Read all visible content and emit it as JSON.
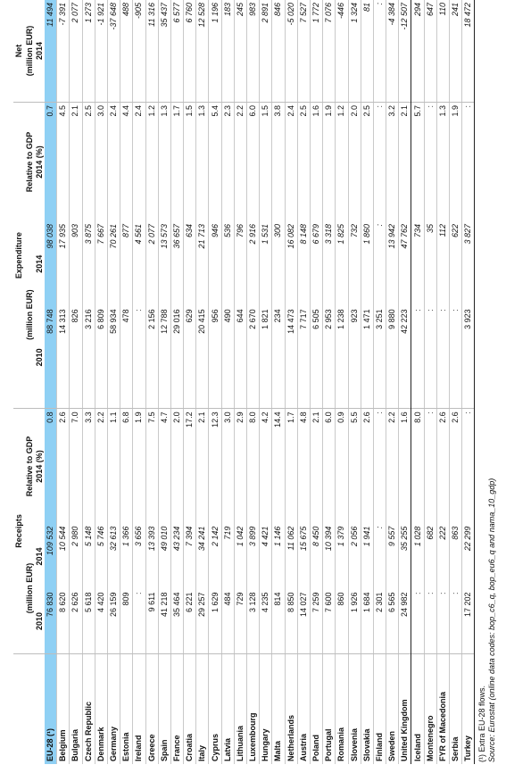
{
  "header": {
    "receipts": "Receipts",
    "expenditure": "Expenditure",
    "net": "Net",
    "unit": "(million EUR)",
    "relative_to_gdp": "Relative to GDP",
    "rel_year": "2014 (%)",
    "y2010": "2010",
    "y2014": "2014"
  },
  "rows": [
    {
      "country": "EU-28 (¹)",
      "r2010": "76 830",
      "r2014": "109 532",
      "rgdp": "0.8",
      "e2010": "88 748",
      "e2014": "98 038",
      "egdp": "0.7",
      "net": "11 494"
    },
    {
      "country": "Belgium",
      "r2010": "8 620",
      "r2014": "10 544",
      "rgdp": "2.6",
      "e2010": "14 313",
      "e2014": "17 935",
      "egdp": "4.5",
      "net": "-7 391"
    },
    {
      "country": "Bulgaria",
      "r2010": "2 626",
      "r2014": "2 980",
      "rgdp": "7.0",
      "e2010": "826",
      "e2014": "903",
      "egdp": "2.1",
      "net": "2 077"
    },
    {
      "country": "Czech Republic",
      "r2010": "5 618",
      "r2014": "5 148",
      "rgdp": "3.3",
      "e2010": "3 216",
      "e2014": "3 875",
      "egdp": "2.5",
      "net": "1 273"
    },
    {
      "country": "Denmark",
      "r2010": "4 420",
      "r2014": "5 746",
      "rgdp": "2.2",
      "e2010": "6 809",
      "e2014": "7 667",
      "egdp": "3.0",
      "net": "-1 921"
    },
    {
      "country": "Germany",
      "r2010": "26 159",
      "r2014": "32 613",
      "rgdp": "1.1",
      "e2010": "58 934",
      "e2014": "70 261",
      "egdp": "2.4",
      "net": "-37 648"
    },
    {
      "country": "Estonia",
      "r2010": "809",
      "r2014": "1 366",
      "rgdp": "6.8",
      "e2010": "478",
      "e2014": "877",
      "egdp": "4.4",
      "net": "488"
    },
    {
      "country": "Ireland",
      "r2010": ":",
      "r2014": "3 656",
      "rgdp": "1.9",
      "e2010": ":",
      "e2014": "4 561",
      "egdp": "2.4",
      "net": "-905"
    },
    {
      "country": "Greece",
      "r2010": "9 611",
      "r2014": "13 393",
      "rgdp": "7.5",
      "e2010": "2 156",
      "e2014": "2 077",
      "egdp": "1.2",
      "net": "11 316"
    },
    {
      "country": "Spain",
      "r2010": "41 218",
      "r2014": "49 010",
      "rgdp": "4.7",
      "e2010": "12 788",
      "e2014": "13 573",
      "egdp": "1.3",
      "net": "35 437"
    },
    {
      "country": "France",
      "r2010": "35 464",
      "r2014": "43 234",
      "rgdp": "2.0",
      "e2010": "29 016",
      "e2014": "36 657",
      "egdp": "1.7",
      "net": "6 577"
    },
    {
      "country": "Croatia",
      "r2010": "6 221",
      "r2014": "7 394",
      "rgdp": "17.2",
      "e2010": "629",
      "e2014": "634",
      "egdp": "1.5",
      "net": "6 760"
    },
    {
      "country": "Italy",
      "r2010": "29 257",
      "r2014": "34 241",
      "rgdp": "2.1",
      "e2010": "20 415",
      "e2014": "21 713",
      "egdp": "1.3",
      "net": "12 528"
    },
    {
      "country": "Cyprus",
      "r2010": "1 629",
      "r2014": "2 142",
      "rgdp": "12.3",
      "e2010": "956",
      "e2014": "946",
      "egdp": "5.4",
      "net": "1 196"
    },
    {
      "country": "Latvia",
      "r2010": "484",
      "r2014": "719",
      "rgdp": "3.0",
      "e2010": "490",
      "e2014": "536",
      "egdp": "2.3",
      "net": "183"
    },
    {
      "country": "Lithuania",
      "r2010": "729",
      "r2014": "1 042",
      "rgdp": "2.9",
      "e2010": "644",
      "e2014": "796",
      "egdp": "2.2",
      "net": "245"
    },
    {
      "country": "Luxembourg",
      "r2010": "3 128",
      "r2014": "3 899",
      "rgdp": "8.0",
      "e2010": "2 670",
      "e2014": "2 916",
      "egdp": "6.0",
      "net": "983"
    },
    {
      "country": "Hungary",
      "r2010": "4 235",
      "r2014": "4 421",
      "rgdp": "4.2",
      "e2010": "1 821",
      "e2014": "1 531",
      "egdp": "1.5",
      "net": "2 891"
    },
    {
      "country": "Malta",
      "r2010": "814",
      "r2014": "1 146",
      "rgdp": "14.4",
      "e2010": "234",
      "e2014": "300",
      "egdp": "3.8",
      "net": "846"
    },
    {
      "country": "Netherlands",
      "r2010": "8 850",
      "r2014": "11 062",
      "rgdp": "1.7",
      "e2010": "14 473",
      "e2014": "16 082",
      "egdp": "2.4",
      "net": "-5 020"
    },
    {
      "country": "Austria",
      "r2010": "14 027",
      "r2014": "15 675",
      "rgdp": "4.8",
      "e2010": "7 717",
      "e2014": "8 148",
      "egdp": "2.5",
      "net": "7 527"
    },
    {
      "country": "Poland",
      "r2010": "7 259",
      "r2014": "8 450",
      "rgdp": "2.1",
      "e2010": "6 505",
      "e2014": "6 679",
      "egdp": "1.6",
      "net": "1 772"
    },
    {
      "country": "Portugal",
      "r2010": "7 600",
      "r2014": "10 394",
      "rgdp": "6.0",
      "e2010": "2 953",
      "e2014": "3 318",
      "egdp": "1.9",
      "net": "7 076"
    },
    {
      "country": "Romania",
      "r2010": "860",
      "r2014": "1 379",
      "rgdp": "0.9",
      "e2010": "1 238",
      "e2014": "1 825",
      "egdp": "1.2",
      "net": "-446"
    },
    {
      "country": "Slovenia",
      "r2010": "1 926",
      "r2014": "2 056",
      "rgdp": "5.5",
      "e2010": "923",
      "e2014": "732",
      "egdp": "2.0",
      "net": "1 324"
    },
    {
      "country": "Slovakia",
      "r2010": "1 684",
      "r2014": "1 941",
      "rgdp": "2.6",
      "e2010": "1 471",
      "e2014": "1 860",
      "egdp": "2.5",
      "net": "81"
    },
    {
      "country": "Finland",
      "r2010": "2 301",
      "r2014": ":",
      "rgdp": ":",
      "e2010": "3 251",
      "e2014": ":",
      "egdp": ":",
      "net": ":"
    },
    {
      "country": "Sweden",
      "r2010": "6 565",
      "r2014": "9 557",
      "rgdp": "2.2",
      "e2010": "9 880",
      "e2014": "13 942",
      "egdp": "3.2",
      "net": "-4 384"
    },
    {
      "country": "United Kingdom",
      "r2010": "24 982",
      "r2014": "35 255",
      "rgdp": "1.6",
      "e2010": "42 223",
      "e2014": "47 762",
      "egdp": "2.1",
      "net": "-12 507"
    },
    {
      "country": "Iceland",
      "r2010": ":",
      "r2014": "1 028",
      "rgdp": "8.0",
      "e2010": ":",
      "e2014": "734",
      "egdp": "5.7",
      "net": "294"
    },
    {
      "country": "Montenegro",
      "r2010": ":",
      "r2014": "682",
      "rgdp": ":",
      "e2010": ":",
      "e2014": "35",
      "egdp": ":",
      "net": "647"
    },
    {
      "country": "FYR of Macedonia",
      "r2010": ":",
      "r2014": "222",
      "rgdp": "2.6",
      "e2010": ":",
      "e2014": "112",
      "egdp": "1.3",
      "net": "110"
    },
    {
      "country": "Serbia",
      "r2010": ":",
      "r2014": "863",
      "rgdp": "2.6",
      "e2010": ":",
      "e2014": "622",
      "egdp": "1.9",
      "net": "241"
    },
    {
      "country": "Turkey",
      "r2010": "17 202",
      "r2014": "22 299",
      "rgdp": ":",
      "e2010": "3 923",
      "e2014": "3 827",
      "egdp": ":",
      "net": "18 472"
    }
  ],
  "notes": {
    "footnote": "(¹) Extra EU-28 flows.",
    "source": "Source: Eurostat (online data codes: bop_c6_q, bop_eu6_q and nama_10_gdp)"
  },
  "colors": {
    "highlight": "#8fd0f4"
  }
}
